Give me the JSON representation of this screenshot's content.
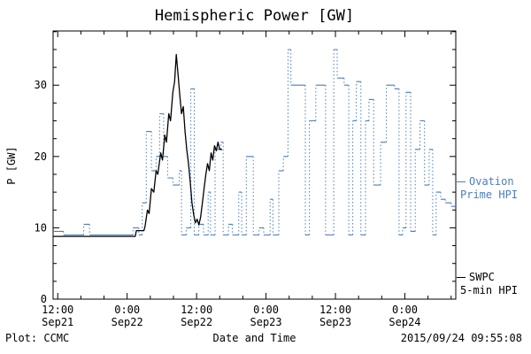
{
  "title": "Hemispheric Power [GW]",
  "footer": {
    "left": "Plot: CCMC",
    "right": "2015/09/24 09:55:08"
  },
  "chart_data": {
    "type": "line",
    "title": "Hemispheric Power [GW]",
    "xlabel": "Date and Time",
    "ylabel": "P [GW]",
    "x_range": [
      11.2,
      80.8
    ],
    "x_unit": "hours since Sep21 00:00",
    "ylim": [
      0,
      37.6
    ],
    "y_ticks": [
      0,
      10,
      20,
      30
    ],
    "x_ticks": [
      {
        "hour": 12,
        "time": "12:00",
        "date": "Sep21"
      },
      {
        "hour": 24,
        "time": "0:00",
        "date": "Sep22"
      },
      {
        "hour": 36,
        "time": "12:00",
        "date": "Sep22"
      },
      {
        "hour": 48,
        "time": "0:00",
        "date": "Sep23"
      },
      {
        "hour": 60,
        "time": "12:00",
        "date": "Sep23"
      },
      {
        "hour": 72,
        "time": "0:00",
        "date": "Sep24"
      }
    ],
    "series": [
      {
        "name": "SWPC 5-min HPI",
        "color": "#000000",
        "style": "solid-line",
        "points": [
          [
            11.2,
            8.8
          ],
          [
            25.4,
            8.8
          ],
          [
            25.6,
            9.6
          ],
          [
            26.9,
            9.6
          ],
          [
            27.1,
            10.2
          ],
          [
            27.5,
            12.5
          ],
          [
            27.8,
            12
          ],
          [
            28.2,
            15.5
          ],
          [
            28.6,
            15
          ],
          [
            29,
            18
          ],
          [
            29.3,
            17.5
          ],
          [
            29.8,
            20.5
          ],
          [
            30.1,
            19.5
          ],
          [
            30.5,
            23
          ],
          [
            30.8,
            22
          ],
          [
            31.2,
            26
          ],
          [
            31.5,
            25
          ],
          [
            31.9,
            29
          ],
          [
            32.2,
            30.5
          ],
          [
            32.5,
            34.3
          ],
          [
            32.8,
            31.5
          ],
          [
            33.1,
            28.5
          ],
          [
            33.4,
            26
          ],
          [
            33.7,
            27
          ],
          [
            34,
            23.5
          ],
          [
            34.3,
            21
          ],
          [
            34.6,
            19
          ],
          [
            34.9,
            16.5
          ],
          [
            35.2,
            13.5
          ],
          [
            35.5,
            11.8
          ],
          [
            35.8,
            10.7
          ],
          [
            36.1,
            11.2
          ],
          [
            36.4,
            10.4
          ],
          [
            36.7,
            11.5
          ],
          [
            37,
            13.5
          ],
          [
            37.3,
            15.5
          ],
          [
            37.6,
            17.5
          ],
          [
            37.9,
            19
          ],
          [
            38.2,
            18
          ],
          [
            38.5,
            20.5
          ],
          [
            38.8,
            19.5
          ],
          [
            39.1,
            21.5
          ],
          [
            39.4,
            20.8
          ],
          [
            39.7,
            22
          ],
          [
            40,
            21
          ],
          [
            40.4,
            21
          ]
        ]
      },
      {
        "name": "Ovation Prime HPI",
        "color": "#4a7dbf",
        "style": "step-dotted-vertical",
        "points": [
          [
            11.2,
            9.5
          ],
          [
            13,
            9
          ],
          [
            16.5,
            10.5
          ],
          [
            17.5,
            9
          ],
          [
            25,
            10
          ],
          [
            26,
            9
          ],
          [
            26.6,
            13.5
          ],
          [
            27.3,
            23.5
          ],
          [
            28.2,
            18
          ],
          [
            29,
            20
          ],
          [
            29.6,
            26
          ],
          [
            30.3,
            20
          ],
          [
            31,
            17
          ],
          [
            31.9,
            16
          ],
          [
            33,
            18
          ],
          [
            33.4,
            9
          ],
          [
            34.2,
            10
          ],
          [
            35,
            29.5
          ],
          [
            35.6,
            9
          ],
          [
            36.4,
            10.5
          ],
          [
            37.2,
            9
          ],
          [
            38,
            15
          ],
          [
            38.4,
            9
          ],
          [
            39.2,
            21
          ],
          [
            40.2,
            22
          ],
          [
            40.6,
            9
          ],
          [
            41.5,
            10.5
          ],
          [
            42.2,
            9
          ],
          [
            43.3,
            15
          ],
          [
            43.8,
            9
          ],
          [
            44.6,
            20
          ],
          [
            45.8,
            9
          ],
          [
            46.8,
            10
          ],
          [
            47.6,
            9
          ],
          [
            48.7,
            14
          ],
          [
            49.2,
            9
          ],
          [
            50.2,
            18
          ],
          [
            51,
            20
          ],
          [
            51.8,
            35
          ],
          [
            52.3,
            30
          ],
          [
            54.8,
            9
          ],
          [
            55.5,
            25
          ],
          [
            56.6,
            30
          ],
          [
            58.3,
            9
          ],
          [
            59.7,
            35
          ],
          [
            60.3,
            31
          ],
          [
            61.5,
            30
          ],
          [
            62.3,
            9
          ],
          [
            63,
            25
          ],
          [
            63.6,
            30.5
          ],
          [
            64.4,
            9
          ],
          [
            65.2,
            25
          ],
          [
            65.8,
            28
          ],
          [
            66.6,
            16
          ],
          [
            67.8,
            22
          ],
          [
            68.8,
            30
          ],
          [
            70.2,
            29.5
          ],
          [
            71,
            9
          ],
          [
            71.6,
            10
          ],
          [
            72.2,
            29
          ],
          [
            73,
            9.5
          ],
          [
            73.8,
            21
          ],
          [
            74.6,
            25
          ],
          [
            75.4,
            16
          ],
          [
            76.2,
            21
          ],
          [
            76.8,
            9
          ],
          [
            77.4,
            15
          ],
          [
            78.2,
            14
          ],
          [
            79,
            13.5
          ],
          [
            80,
            13
          ]
        ]
      }
    ],
    "legend": [
      {
        "lines": [
          "Ovation",
          "Prime HPI"
        ],
        "color": "#4a7dbf",
        "position": "right-middle"
      },
      {
        "lines": [
          "SWPC",
          "5-min HPI"
        ],
        "color": "#000000",
        "position": "right-bottom"
      }
    ]
  }
}
